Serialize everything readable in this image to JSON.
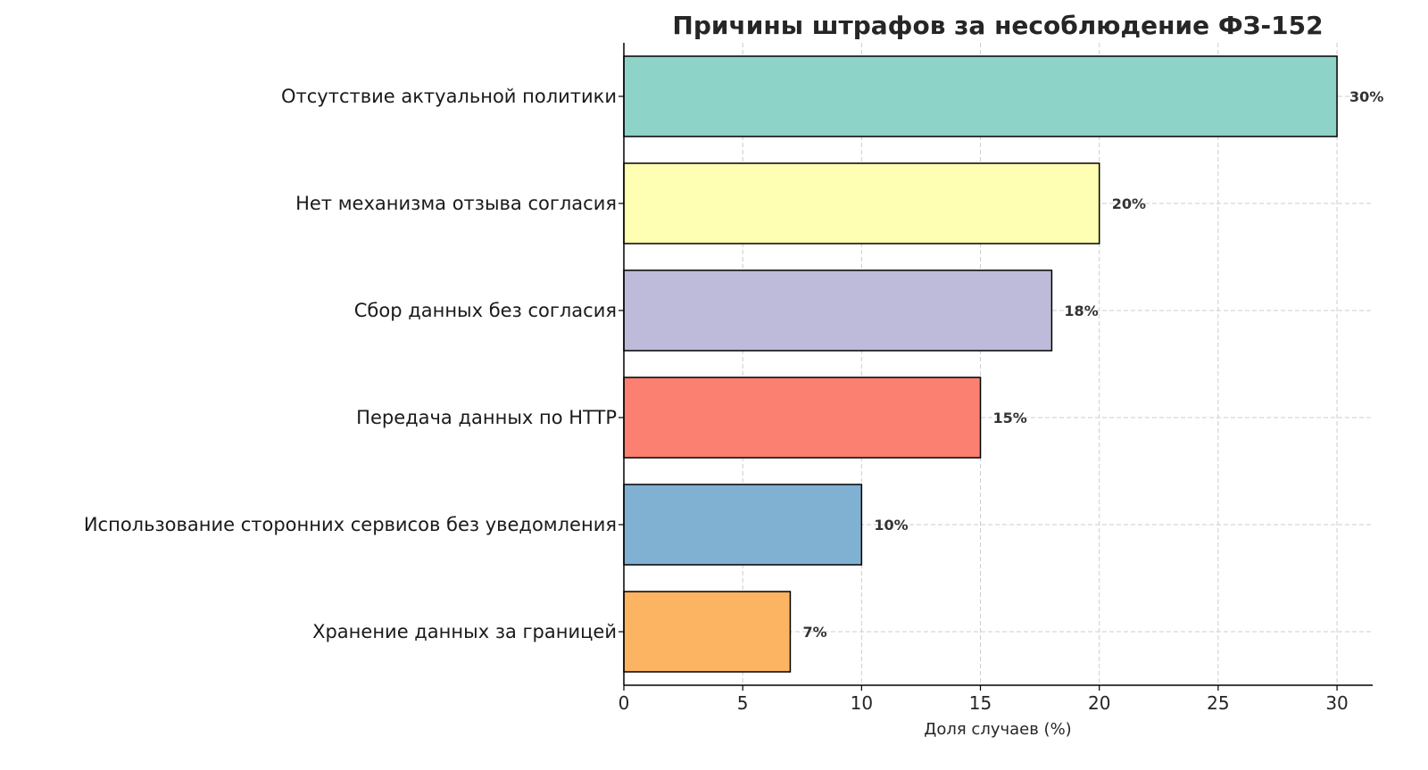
{
  "chart_data": {
    "type": "bar",
    "orientation": "horizontal",
    "title": "Причины штрафов за несоблюдение ФЗ-152",
    "xlabel": "Доля случаев (%)",
    "ylabel": "",
    "categories": [
      "Отсутствие актуальной политики",
      "Нет механизма отзыва согласия",
      "Сбор данных без согласия",
      "Передача данных по HTTP",
      "Использование сторонних сервисов без уведомления",
      "Хранение данных за границей"
    ],
    "values": [
      30,
      20,
      18,
      15,
      10,
      7
    ],
    "data_labels": [
      "30%",
      "20%",
      "18%",
      "15%",
      "10%",
      "7%"
    ],
    "colors": [
      "#8dd3c7",
      "#ffffb3",
      "#bebada",
      "#fb8072",
      "#80b1d3",
      "#fdb462"
    ],
    "xlim": [
      0,
      31.5
    ],
    "xticks": [
      0,
      5,
      10,
      15,
      20,
      25,
      30
    ],
    "grid": true,
    "grid_style": "dashed"
  }
}
